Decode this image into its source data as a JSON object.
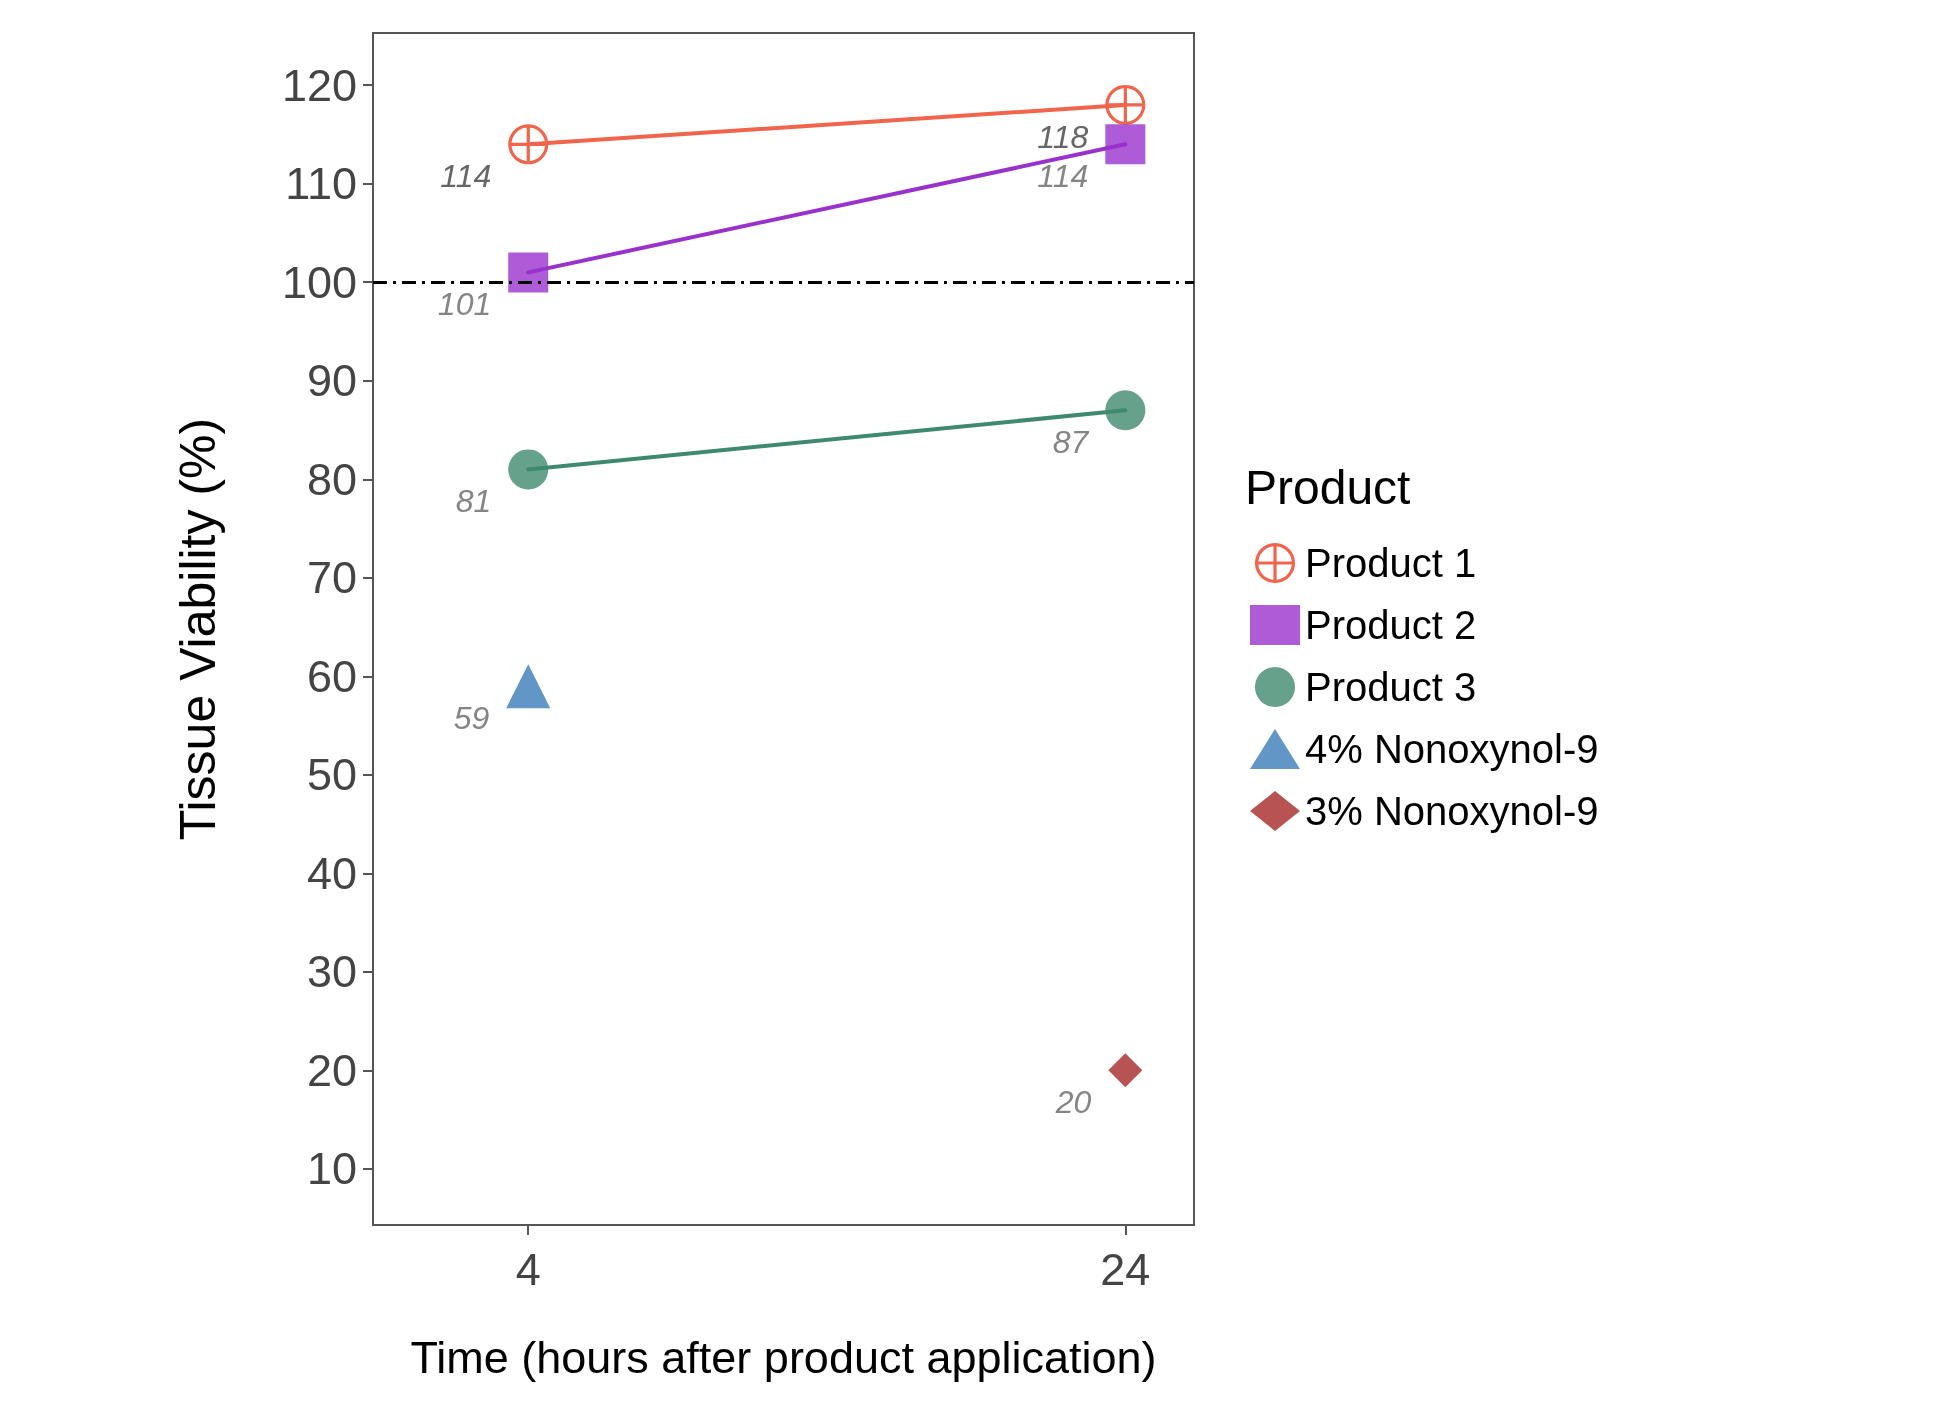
{
  "chart_data": {
    "type": "line",
    "xlabel": "Time (hours after product application)",
    "ylabel": "Tissue Viability (%)",
    "legend_title": "Product",
    "x": [
      4,
      24
    ],
    "xlim": [
      -1.2,
      26.3
    ],
    "xticks": [
      4,
      24
    ],
    "ylim": [
      4.3,
      125.3
    ],
    "yticks": [
      10,
      20,
      30,
      40,
      50,
      60,
      70,
      80,
      90,
      100,
      110,
      120
    ],
    "series": [
      {
        "name": "Product 1",
        "color": "#f0654c",
        "values": [
          114,
          118
        ],
        "marker": "cross"
      },
      {
        "name": "Product 2",
        "color": "#9932cc",
        "values": [
          101,
          114
        ],
        "marker": "square"
      },
      {
        "name": "Product 3",
        "color": "#3f8a6e",
        "values": [
          81,
          87
        ],
        "marker": "circle"
      },
      {
        "name": "4% Nonoxynol-9",
        "color": "#3a7cb8",
        "values": [
          59,
          null
        ],
        "marker": "triangle"
      },
      {
        "name": "3% Nonoxynol-9",
        "color": "#a52828",
        "values": [
          null,
          20
        ],
        "marker": "diamond"
      }
    ],
    "ref_lines": [
      {
        "axis": "y",
        "value": 100,
        "line_style": "dashdot",
        "color": "#000000"
      }
    ],
    "data_labels": true,
    "grid": false,
    "legend": "right",
    "line_style": "solid"
  }
}
